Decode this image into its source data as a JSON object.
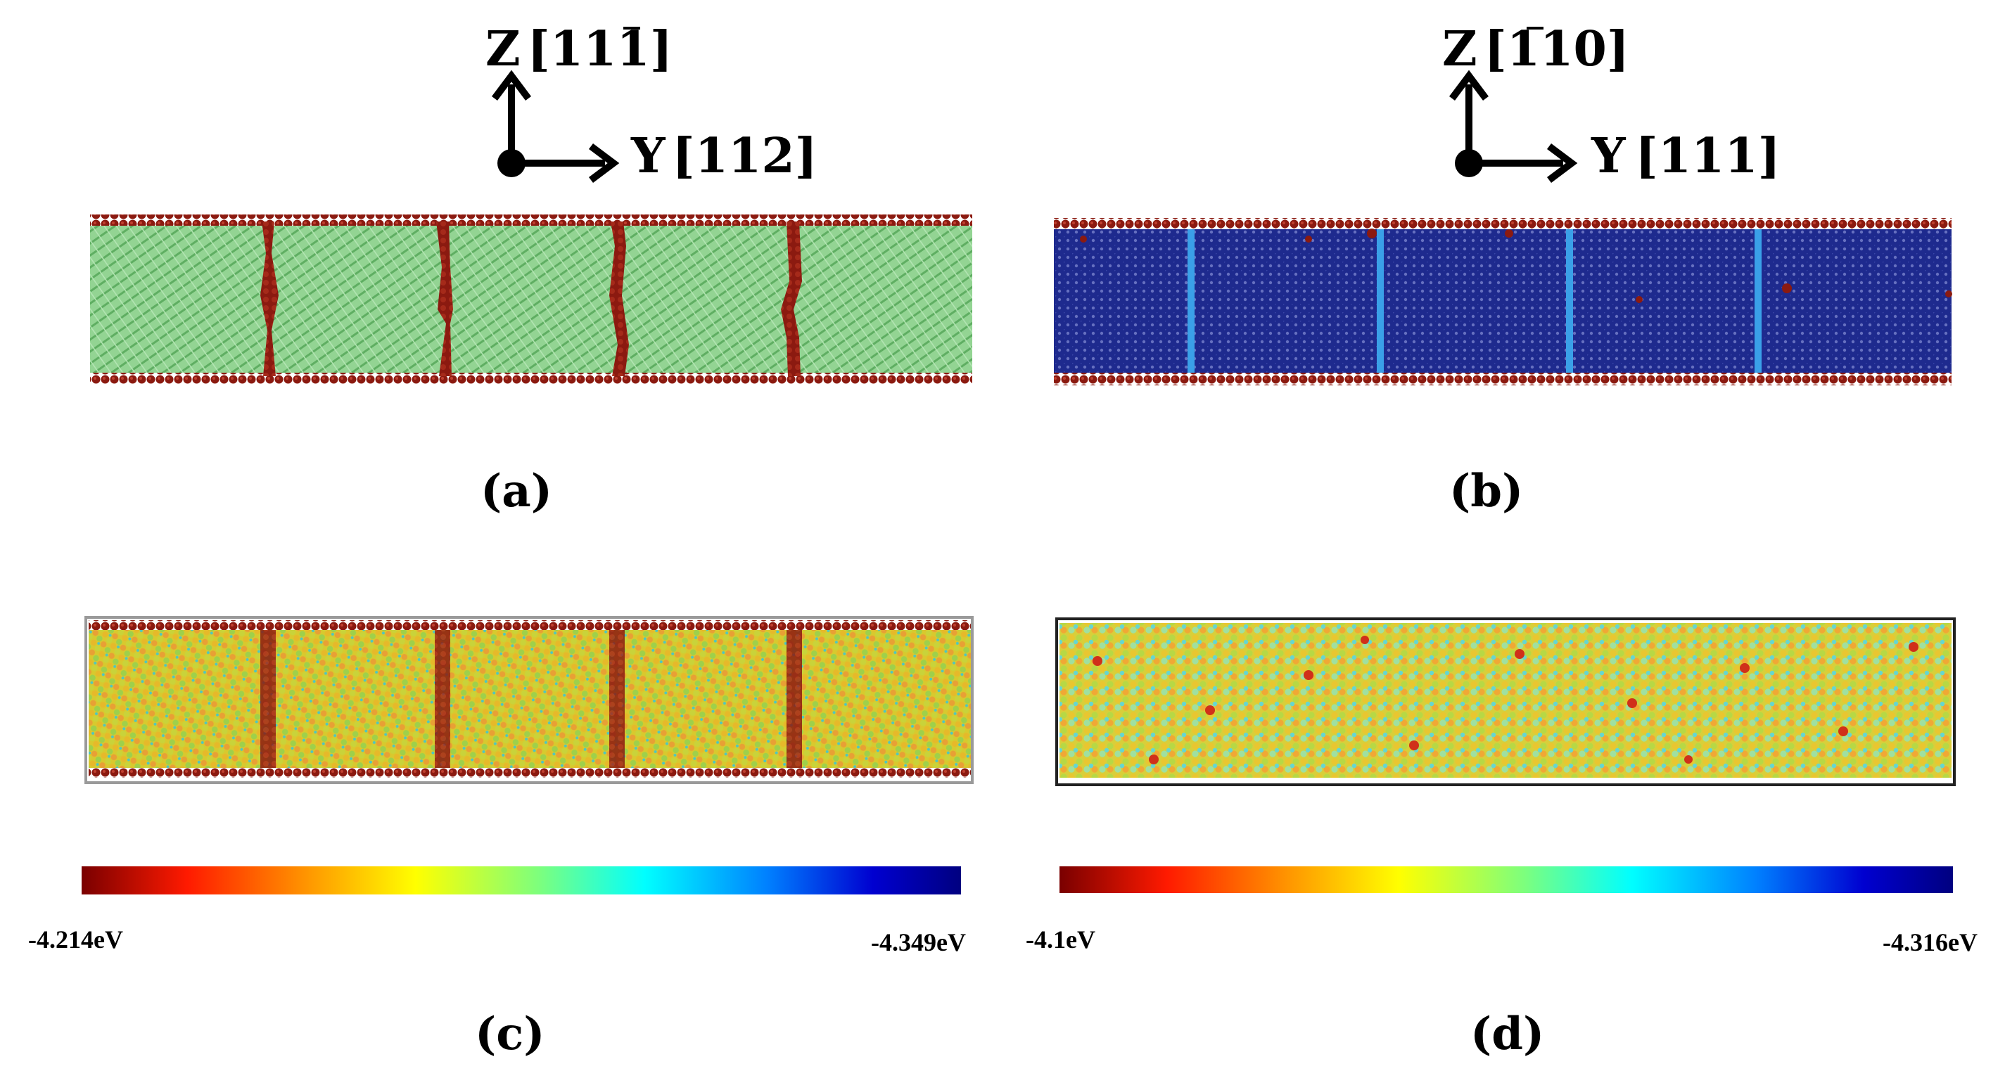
{
  "figure": {
    "panel_a": {
      "label": "(a)",
      "axes": {
        "z_prefix": "Z",
        "z_dir": "[11",
        "z_dir_bar": "1",
        "z_dir_close": "]",
        "y_prefix": "Y",
        "y_dir": "[112]"
      },
      "style": "crystal-structure-green",
      "colors": {
        "matrix": "#8fd18f",
        "boundary": "#8b1a10"
      }
    },
    "panel_b": {
      "label": "(b)",
      "axes": {
        "z_prefix": "Z",
        "z_dir_open": "[",
        "z_dir_bar": "1",
        "z_dir": "10]",
        "y_prefix": "Y",
        "y_dir": "[111]"
      },
      "style": "crystal-structure-blue",
      "colors": {
        "matrix": "#1c2a8c",
        "boundary": "#3aa0e8",
        "surface": "#8b1a10"
      }
    },
    "panel_c": {
      "label": "(c)",
      "style": "energy-map",
      "colorbar": {
        "min_label": "-4.214eV",
        "max_label": "-4.349eV"
      }
    },
    "panel_d": {
      "label": "(d)",
      "style": "energy-map",
      "colorbar": {
        "min_label": "-4.1eV",
        "max_label": "-4.316eV"
      }
    },
    "colormap": [
      "#7a0000",
      "#ff1a00",
      "#ff9900",
      "#ffff00",
      "#7dff7d",
      "#00ffff",
      "#0080ff",
      "#0000d0",
      "#000080"
    ]
  }
}
